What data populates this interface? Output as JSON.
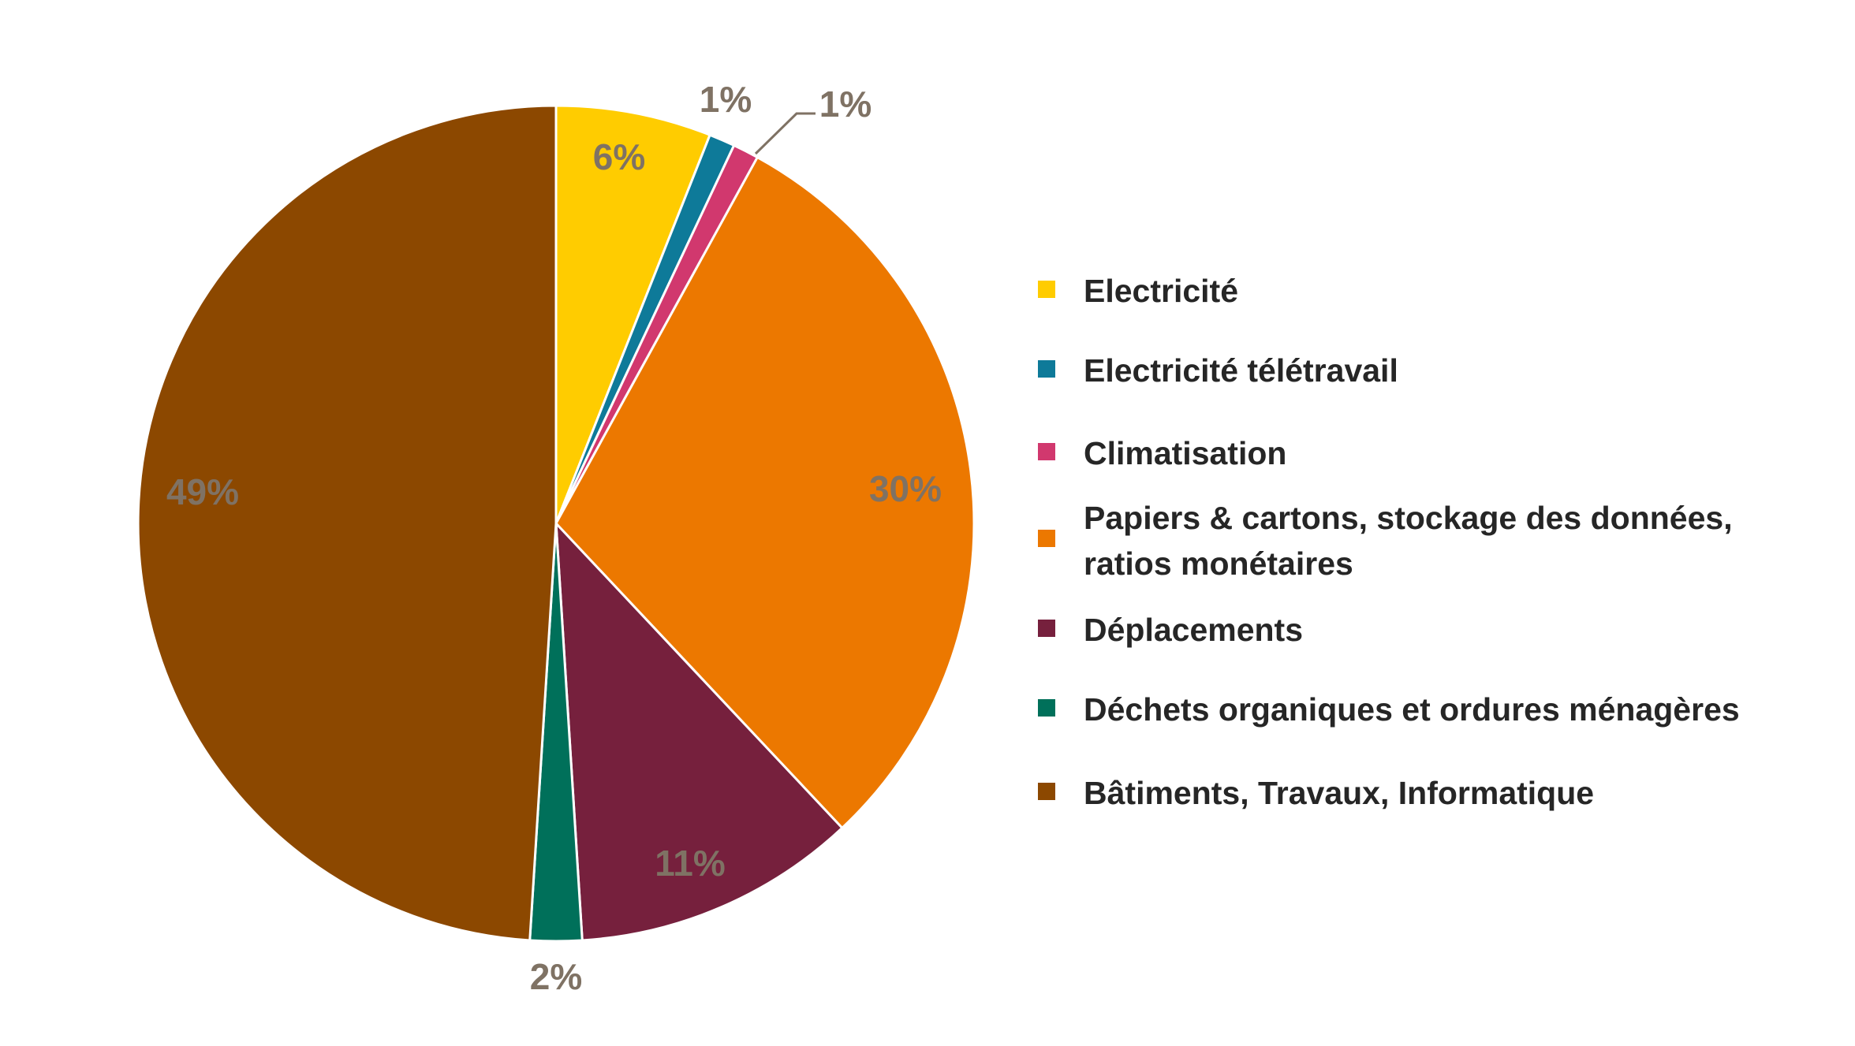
{
  "chart_data": {
    "type": "pie",
    "start_angle_deg": 0,
    "direction": "clockwise",
    "legend_position": "right",
    "slices": [
      {
        "label": "Electricité",
        "value": 6,
        "display": "6%",
        "color": "#FFCC00"
      },
      {
        "label": "Electricité télétravail",
        "value": 1,
        "display": "1%",
        "color": "#0E7A99"
      },
      {
        "label": "Climatisation",
        "value": 1,
        "display": "1%",
        "color": "#D1386E"
      },
      {
        "label": "Papiers & cartons, stockage des données, ratios monétaires",
        "value": 30,
        "display": "30%",
        "color": "#EC7800"
      },
      {
        "label": "Déplacements",
        "value": 11,
        "display": "11%",
        "color": "#76203D"
      },
      {
        "label": "Déchets organiques et ordures ménagères",
        "value": 2,
        "display": "2%",
        "color": "#00705A"
      },
      {
        "label": "Bâtiments, Travaux, Informatique",
        "value": 49,
        "display": "49%",
        "color": "#8C4800"
      }
    ]
  }
}
